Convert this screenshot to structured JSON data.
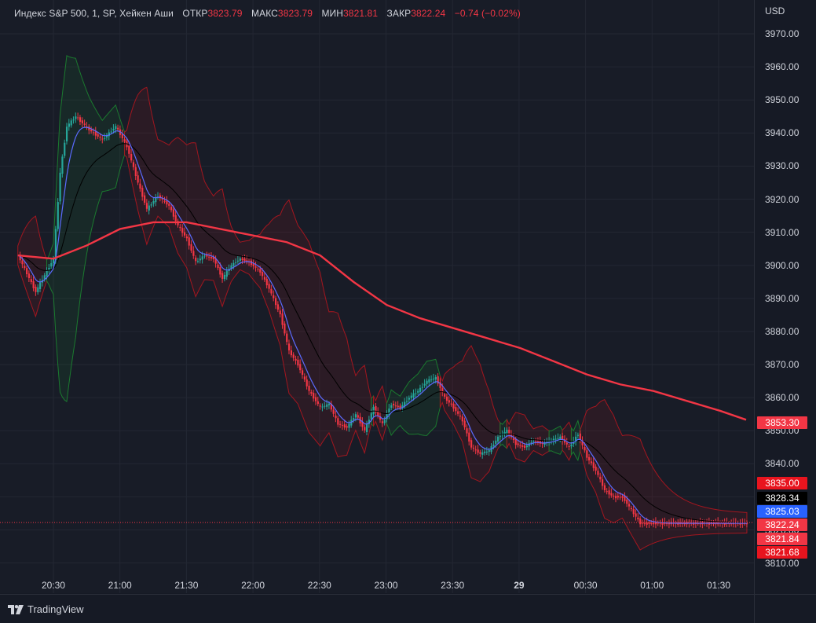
{
  "header": {
    "symbol": "Индекс S&P 500, 1, SP, Хейкен Аши",
    "open_label": "ОТКР",
    "open_value": "3823.79",
    "high_label": "МАКС",
    "high_value": "3823.79",
    "low_label": "МИН",
    "low_value": "3821.81",
    "close_label": "ЗАКР",
    "close_value": "3822.24",
    "change": "−0.74 (−0.02%)"
  },
  "currency": "USD",
  "branding": "TradingView",
  "colors": {
    "background": "#181c27",
    "up": "#26a69a",
    "down": "#f23645",
    "ma_long": "#f23645",
    "ma_short": "#5b6bff",
    "band_mid": "#000000",
    "band_green": "#1b7a2f",
    "band_red": "#a3161f"
  },
  "price_labels": [
    {
      "text": "3853.30",
      "color": "#f23645"
    },
    {
      "text": "3835.00",
      "color": "#e8141e"
    },
    {
      "text": "3828.34",
      "color": "#000000"
    },
    {
      "text": "3825.03",
      "color": "#2962ff"
    },
    {
      "text": "3822.24",
      "color": "#f23645"
    },
    {
      "text": "3821.84",
      "color": "#f23645"
    },
    {
      "text": "3821.68",
      "color": "#e8141e"
    }
  ],
  "chart_data": {
    "type": "candlestick",
    "title": "Индекс S&P 500, 1, SP, Хейкен Аши",
    "ylim": [
      3808,
      3973
    ],
    "y_ticks": [
      "3970.00",
      "3960.00",
      "3950.00",
      "3940.00",
      "3930.00",
      "3920.00",
      "3910.00",
      "3900.00",
      "3890.00",
      "3880.00",
      "3870.00",
      "3860.00",
      "3850.00",
      "3840.00",
      "3830.00",
      "3820.00",
      "3810.00"
    ],
    "x_ticks": [
      "20:30",
      "21:00",
      "21:30",
      "22:00",
      "22:30",
      "23:00",
      "23:30",
      "29",
      "00:30",
      "01:00",
      "01:30"
    ],
    "grid": true,
    "close_series": {
      "name": "",
      "x": [
        "20:14",
        "20:22",
        "20:30",
        "20:33",
        "20:36",
        "20:40",
        "20:46",
        "20:52",
        "20:58",
        "21:03",
        "21:08",
        "21:12",
        "21:17",
        "21:22",
        "21:26",
        "21:30",
        "21:34",
        "21:38",
        "21:42",
        "21:46",
        "21:50",
        "21:54",
        "21:58",
        "22:03",
        "22:07",
        "22:12",
        "22:16",
        "22:20",
        "22:25",
        "22:30",
        "22:34",
        "22:38",
        "22:42",
        "22:46",
        "22:50",
        "22:54",
        "22:58",
        "23:02",
        "23:06",
        "23:10",
        "23:14",
        "23:18",
        "23:22",
        "23:26",
        "23:30",
        "23:34",
        "23:38",
        "23:42",
        "23:46",
        "23:50",
        "23:54",
        "23:58",
        "00:02",
        "00:06",
        "00:10",
        "00:14",
        "00:18",
        "00:22",
        "00:26",
        "00:30",
        "00:34",
        "00:38",
        "00:42",
        "00:46",
        "00:50",
        "00:54",
        "00:58",
        "01:02",
        "01:06",
        "01:10",
        "01:14",
        "01:18",
        "01:22",
        "01:26",
        "01:30",
        "01:34",
        "01:38",
        "01:42"
      ],
      "values": [
        3903,
        3892,
        3902,
        3928,
        3942,
        3945,
        3941,
        3938,
        3942,
        3936,
        3925,
        3917,
        3921,
        3918,
        3912,
        3908,
        3901,
        3903,
        3902,
        3896,
        3900,
        3902,
        3901,
        3898,
        3893,
        3885,
        3874,
        3870,
        3862,
        3857,
        3858,
        3852,
        3851,
        3855,
        3850,
        3857,
        3852,
        3858,
        3857,
        3860,
        3862,
        3865,
        3866,
        3860,
        3857,
        3853,
        3845,
        3843,
        3844,
        3848,
        3850,
        3846,
        3845,
        3847,
        3846,
        3847,
        3848,
        3845,
        3849,
        3842,
        3838,
        3832,
        3830,
        3830,
        3826,
        3822,
        3822,
        3822,
        3822,
        3822,
        3822,
        3822,
        3822,
        3822,
        3822,
        3822,
        3822,
        3822
      ]
    },
    "ma_long_series": {
      "name": "",
      "x": [
        "20:14",
        "20:30",
        "20:45",
        "21:00",
        "21:15",
        "21:30",
        "21:45",
        "22:00",
        "22:15",
        "22:30",
        "22:45",
        "23:00",
        "23:15",
        "23:30",
        "23:45",
        "00:00",
        "00:15",
        "00:30",
        "00:45",
        "01:00",
        "01:15",
        "01:30",
        "01:45"
      ],
      "values": [
        3903,
        3902,
        3906,
        3911,
        3913,
        3913,
        3911,
        3909,
        3907,
        3903,
        3895,
        3888,
        3884,
        3881,
        3878,
        3875,
        3871,
        3867,
        3864,
        3862,
        3859,
        3856,
        3853.3
      ]
    },
    "last_price": 3822.24
  }
}
